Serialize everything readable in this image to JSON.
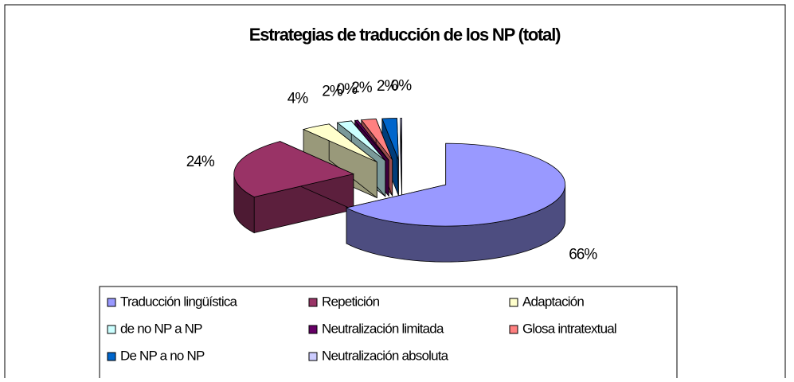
{
  "chart_data": {
    "type": "pie",
    "title": "Estrategias de traducción de los NP (total)",
    "categories": [
      "Traducción lingüística",
      "Repetición",
      "Adaptación",
      "de no NP a NP",
      "Neutralización limitada",
      "Glosa intratextual",
      "De NP a no NP",
      "Neutralización absoluta"
    ],
    "values": [
      66,
      24,
      4,
      2,
      0.4,
      2,
      2,
      0.2
    ],
    "value_labels": [
      "66%",
      "24%",
      "4%",
      "2%",
      "0%",
      "2%",
      "2%",
      "0%"
    ],
    "colors": [
      "#9999ff",
      "#993366",
      "#ffffcc",
      "#ccffff",
      "#660066",
      "#ff8080",
      "#0066cc",
      "#ccccff"
    ],
    "legend": "bottom"
  }
}
